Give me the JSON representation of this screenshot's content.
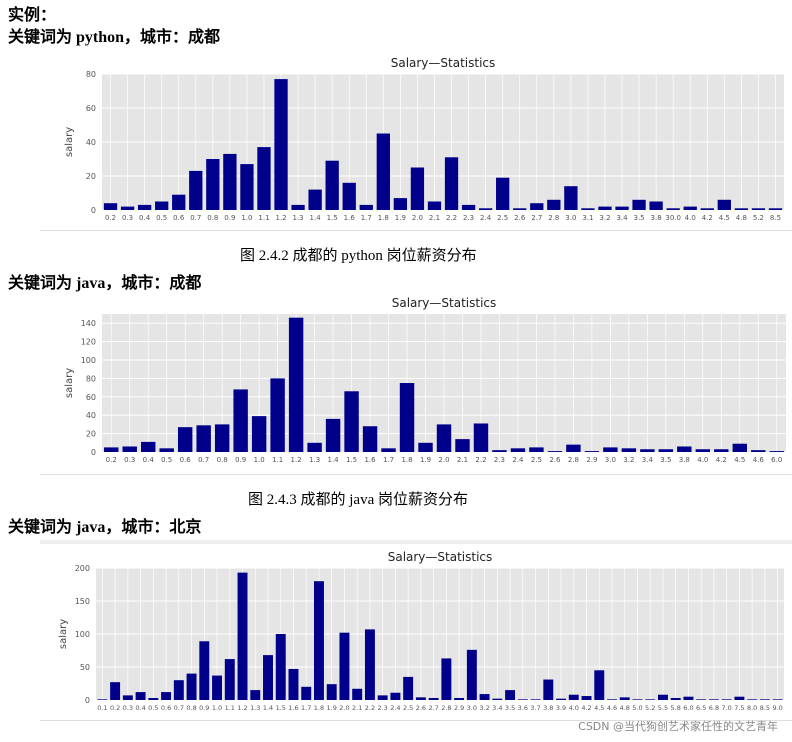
{
  "headings": {
    "example": "实例：",
    "h1": "关键词为 python，城市：成都",
    "h2": "关键词为 java，城市：成都",
    "h3": "关键词为 java，城市：北京"
  },
  "captions": {
    "c1": "图 2.4.2 成都的 python 岗位薪资分布",
    "c2": "图 2.4.3 成都的 java 岗位薪资分布"
  },
  "watermark": "CSDN @当代狗创艺术家任性的文艺青年",
  "colors": {
    "bar": "#00008b",
    "plot_bg": "#e5e5e5",
    "grid": "#ffffff"
  },
  "chart_data": [
    {
      "type": "bar",
      "title": "Salary—Statistics",
      "ylabel": "salary",
      "xlabel": "",
      "ylim": [
        0,
        80
      ],
      "yticks": [
        0,
        20,
        40,
        60,
        80
      ],
      "grid": true,
      "categories": [
        "0.2",
        "0.3",
        "0.4",
        "0.5",
        "0.6",
        "0.7",
        "0.8",
        "0.9",
        "1.0",
        "1.1",
        "1.2",
        "1.3",
        "1.4",
        "1.5",
        "1.6",
        "1.7",
        "1.8",
        "1.9",
        "2.0",
        "2.1",
        "2.2",
        "2.3",
        "2.4",
        "2.5",
        "2.6",
        "2.7",
        "2.8",
        "3.0",
        "3.1",
        "3.2",
        "3.4",
        "3.5",
        "3.8",
        "30.0",
        "4.0",
        "4.2",
        "4.5",
        "4.8",
        "5.2",
        "8.5"
      ],
      "values": [
        4,
        2,
        3,
        5,
        9,
        23,
        30,
        33,
        27,
        37,
        77,
        3,
        12,
        29,
        16,
        3,
        45,
        7,
        25,
        5,
        31,
        3,
        1,
        19,
        1,
        4,
        6,
        14,
        1,
        2,
        2,
        6,
        5,
        1,
        2,
        1,
        6,
        1,
        1,
        1
      ]
    },
    {
      "type": "bar",
      "title": "Salary—Statistics",
      "ylabel": "salary",
      "xlabel": "",
      "ylim": [
        0,
        150
      ],
      "yticks": [
        0,
        20,
        40,
        60,
        80,
        100,
        120,
        140
      ],
      "grid": true,
      "categories": [
        "0.2",
        "0.3",
        "0.4",
        "0.5",
        "0.6",
        "0.7",
        "0.8",
        "0.9",
        "1.0",
        "1.1",
        "1.2",
        "1.3",
        "1.4",
        "1.5",
        "1.6",
        "1.7",
        "1.8",
        "1.9",
        "2.0",
        "2.1",
        "2.2",
        "2.3",
        "2.4",
        "2.5",
        "2.6",
        "2.8",
        "2.9",
        "3.0",
        "3.2",
        "3.4",
        "3.5",
        "3.8",
        "4.0",
        "4.2",
        "4.5",
        "4.6",
        "6.0"
      ],
      "values": [
        5,
        6,
        11,
        4,
        27,
        29,
        30,
        68,
        39,
        80,
        146,
        10,
        36,
        66,
        28,
        4,
        75,
        10,
        30,
        14,
        31,
        2,
        4,
        5,
        1,
        8,
        1,
        5,
        4,
        3,
        3,
        6,
        3,
        3,
        9,
        2,
        1
      ]
    },
    {
      "type": "bar",
      "title": "Salary—Statistics",
      "ylabel": "salary",
      "xlabel": "",
      "ylim": [
        0,
        200
      ],
      "yticks": [
        0,
        50,
        100,
        150,
        200
      ],
      "grid": true,
      "categories": [
        "0.1",
        "0.2",
        "0.3",
        "0.4",
        "0.5",
        "0.6",
        "0.7",
        "0.8",
        "0.9",
        "1.0",
        "1.1",
        "1.2",
        "1.3",
        "1.4",
        "1.5",
        "1.6",
        "1.7",
        "1.8",
        "1.9",
        "2.0",
        "2.1",
        "2.2",
        "2.3",
        "2.4",
        "2.5",
        "2.6",
        "2.7",
        "2.8",
        "2.9",
        "3.0",
        "3.2",
        "3.4",
        "3.5",
        "3.6",
        "3.7",
        "3.8",
        "3.9",
        "4.0",
        "4.2",
        "4.5",
        "4.6",
        "4.8",
        "5.0",
        "5.2",
        "5.5",
        "5.8",
        "6.0",
        "6.5",
        "6.8",
        "7.0",
        "7.5",
        "8.0",
        "8.5",
        "9.0"
      ],
      "values": [
        1,
        27,
        7,
        12,
        3,
        12,
        30,
        40,
        89,
        37,
        62,
        193,
        15,
        68,
        100,
        47,
        20,
        180,
        24,
        102,
        17,
        107,
        7,
        11,
        35,
        4,
        3,
        63,
        3,
        76,
        9,
        2,
        15,
        1,
        1,
        31,
        2,
        8,
        6,
        45,
        1,
        4,
        1,
        1,
        8,
        3,
        5,
        1,
        1,
        1,
        5,
        1,
        1,
        1
      ]
    }
  ]
}
